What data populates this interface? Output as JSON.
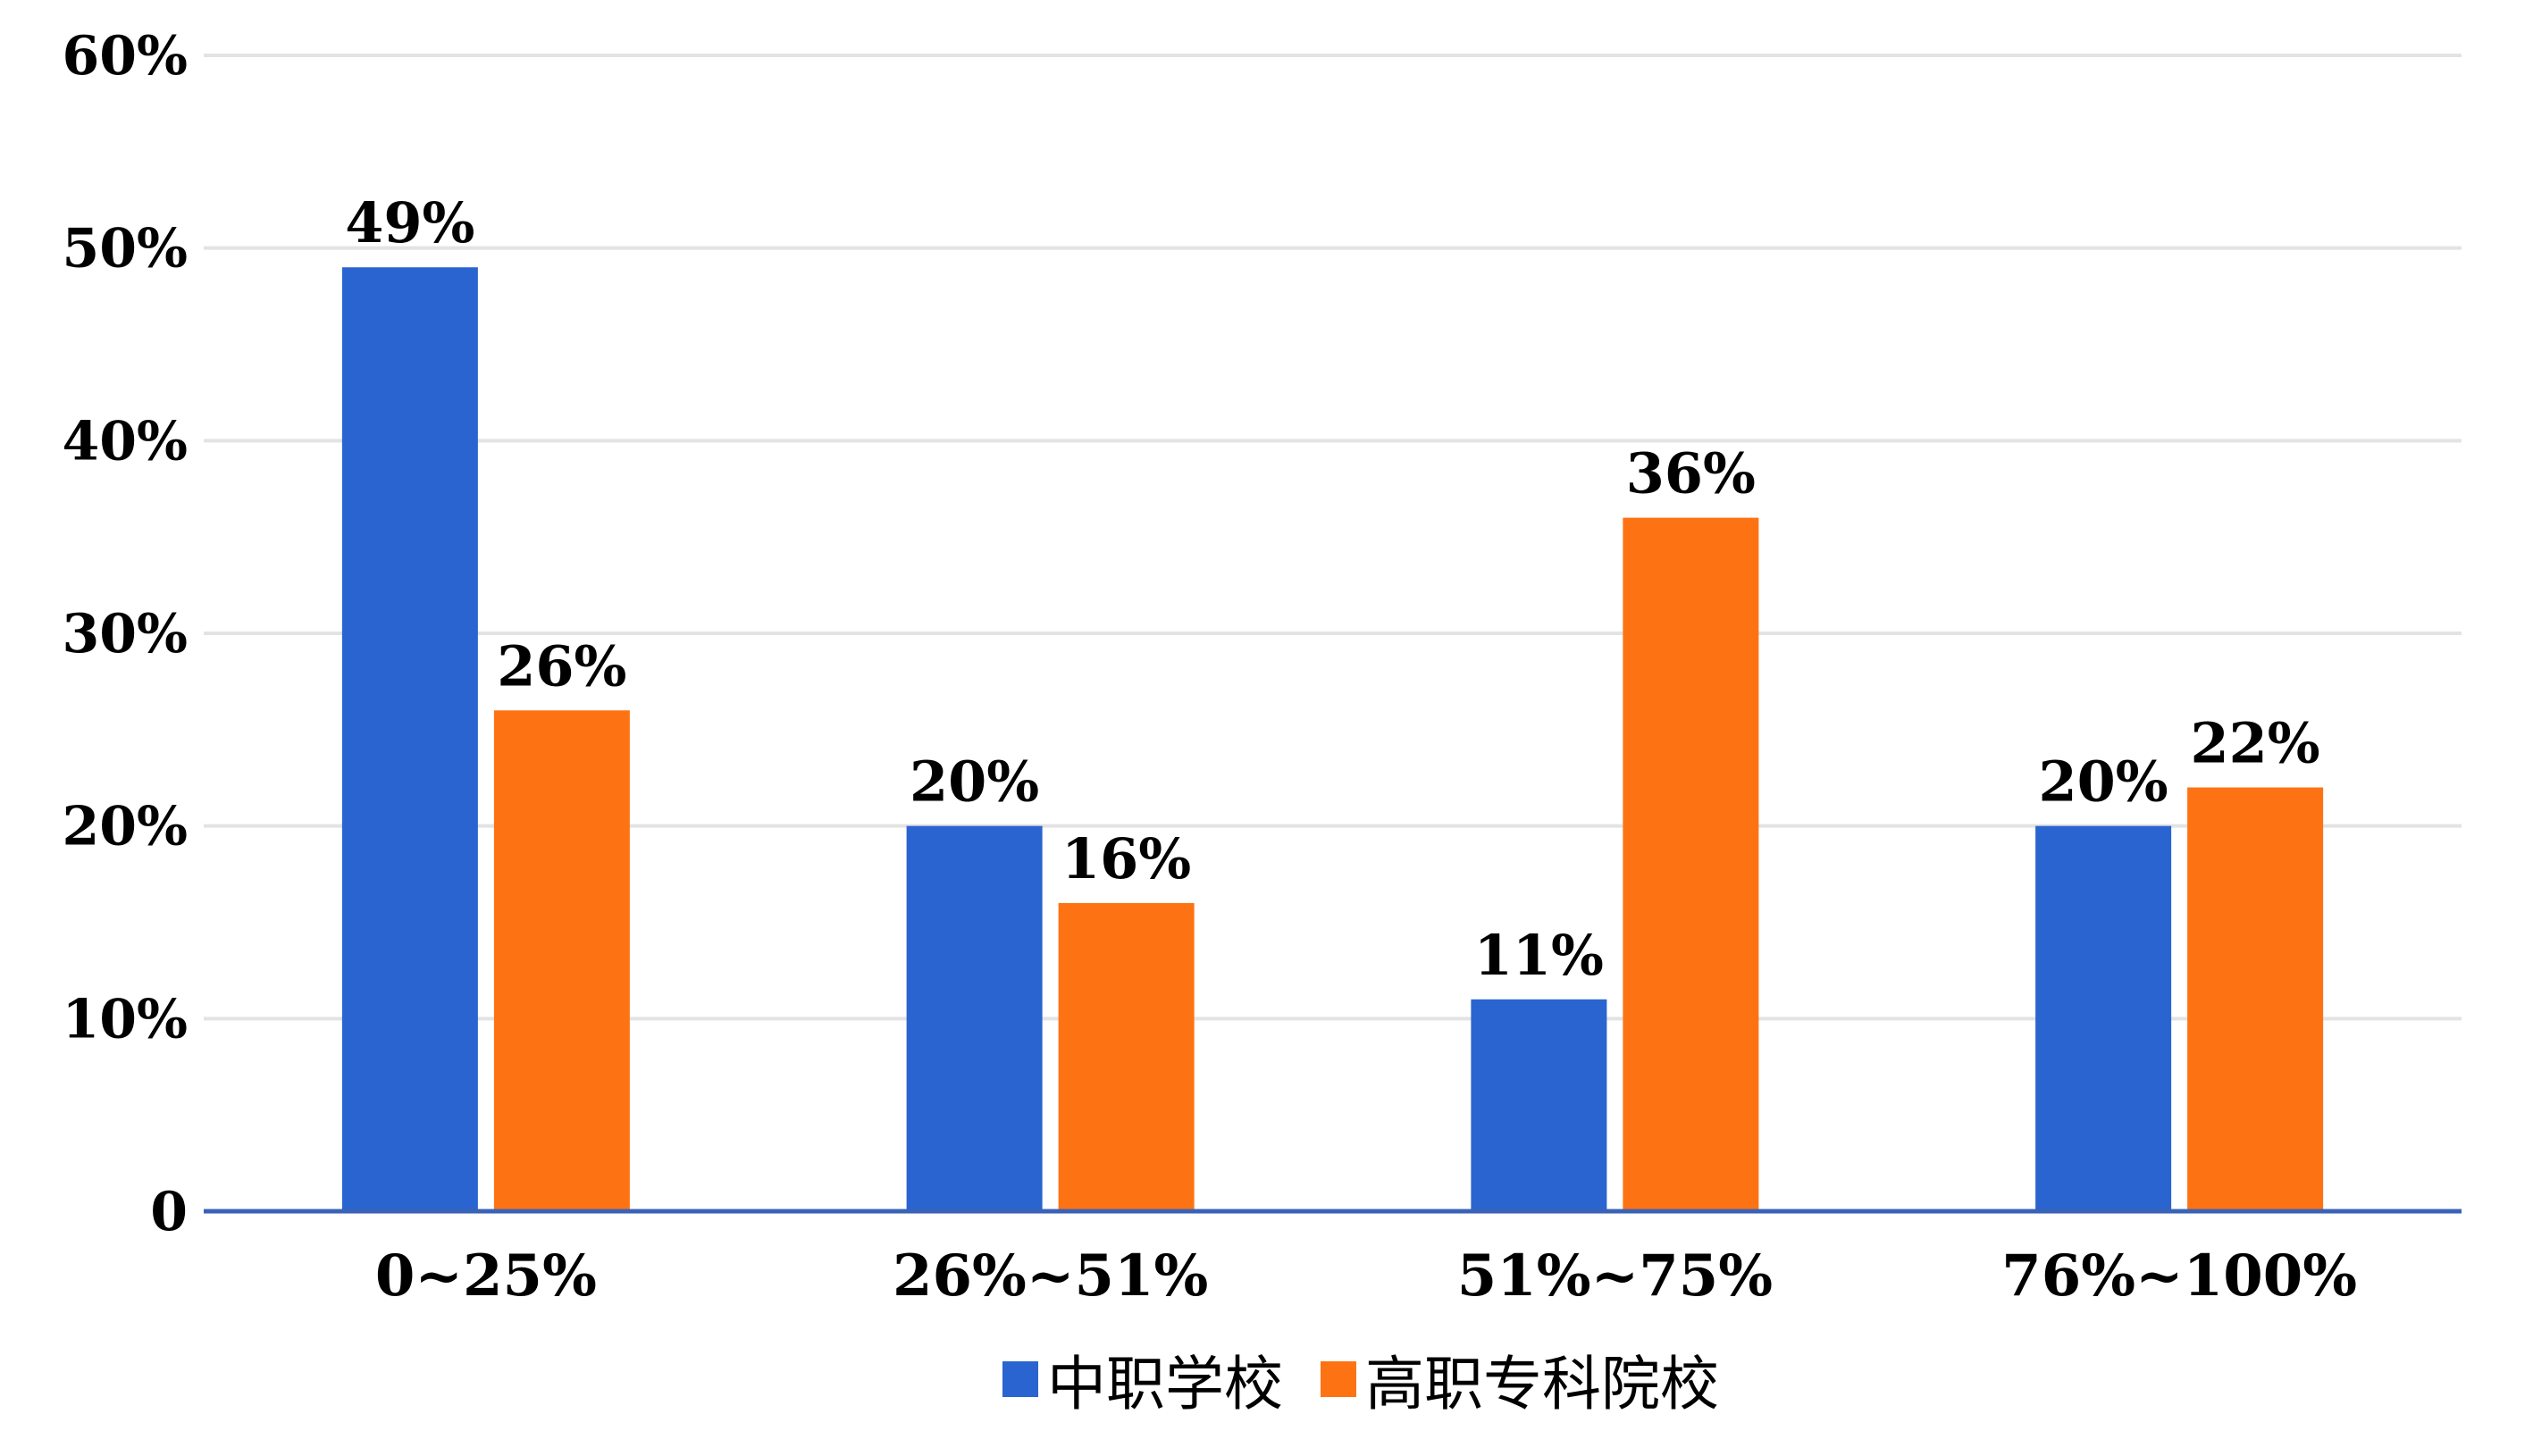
{
  "chart_data": {
    "type": "bar",
    "categories": [
      "0~25%",
      "26%~51%",
      "51%~75%",
      "76%~100%"
    ],
    "series": [
      {
        "name": "中职学校",
        "values": [
          49,
          20,
          11,
          20
        ],
        "labels": [
          "49%",
          "20%",
          "11%",
          "20%"
        ],
        "color": "#2a64d0"
      },
      {
        "name": "高职专科院校",
        "values": [
          26,
          16,
          36,
          22
        ],
        "labels": [
          "26%",
          "16%",
          "36%",
          "22%"
        ],
        "color": "#fd7314"
      }
    ],
    "y_ticks": [
      {
        "value": 0,
        "label": "0"
      },
      {
        "value": 10,
        "label": "10%"
      },
      {
        "value": 20,
        "label": "20%"
      },
      {
        "value": 30,
        "label": "30%"
      },
      {
        "value": 40,
        "label": "40%"
      },
      {
        "value": 50,
        "label": "50%"
      },
      {
        "value": 60,
        "label": "60%"
      }
    ],
    "ylim": [
      0,
      60
    ],
    "grid": true,
    "legend_position": "bottom-center",
    "colors": {
      "axis": "#3a62b7",
      "grid": "#e3e3e3"
    }
  }
}
